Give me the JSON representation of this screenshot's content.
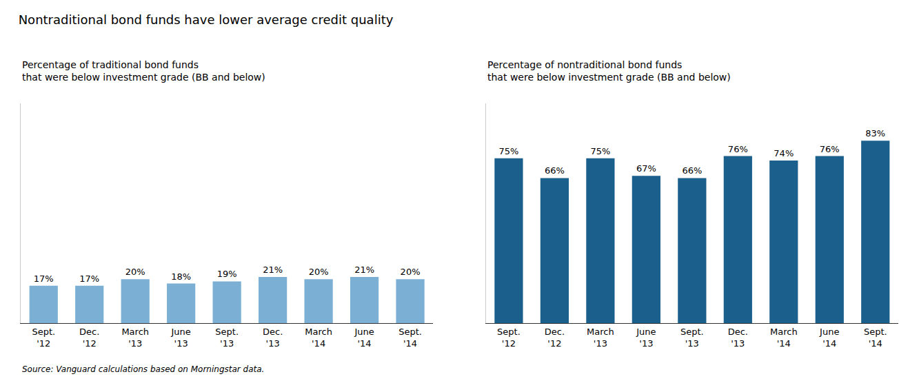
{
  "chart_data": [
    {
      "type": "bar",
      "title": "Nontraditional bond funds have lower average credit quality",
      "subtitle": "Percentage of traditional bond funds\nthat were below investment grade (BB and below)",
      "categories": [
        "Sept.\n'12",
        "Dec.\n'12",
        "March\n'13",
        "June\n'13",
        "Sept.\n'13",
        "Dec.\n'13",
        "March\n'14",
        "June\n'14",
        "Sept.\n'14"
      ],
      "values": [
        17,
        17,
        20,
        18,
        19,
        21,
        20,
        21,
        20
      ],
      "value_labels": [
        "17%",
        "17%",
        "20%",
        "18%",
        "19%",
        "21%",
        "20%",
        "21%",
        "20%"
      ],
      "color": "#7bafd4",
      "ylim": [
        0,
        100
      ],
      "data_labels": true,
      "tick_labels": "x",
      "grid": false,
      "annotations": [
        "Source: Vanguard calculations based on Morningstar data."
      ]
    },
    {
      "type": "bar",
      "subtitle": "Percentage of nontraditional bond funds\nthat were below investment grade (BB and below)",
      "categories": [
        "Sept.\n'12",
        "Dec.\n'12",
        "March\n'13",
        "June\n'13",
        "Sept.\n'13",
        "Dec.\n'13",
        "March\n'14",
        "June\n'14",
        "Sept.\n'14"
      ],
      "values": [
        75,
        66,
        75,
        67,
        66,
        76,
        74,
        76,
        83
      ],
      "value_labels": [
        "75%",
        "66%",
        "75%",
        "67%",
        "66%",
        "76%",
        "74%",
        "76%",
        "83%"
      ],
      "color": "#1b5f8c",
      "ylim": [
        0,
        100
      ],
      "data_labels": true,
      "tick_labels": "x",
      "grid": false
    }
  ]
}
